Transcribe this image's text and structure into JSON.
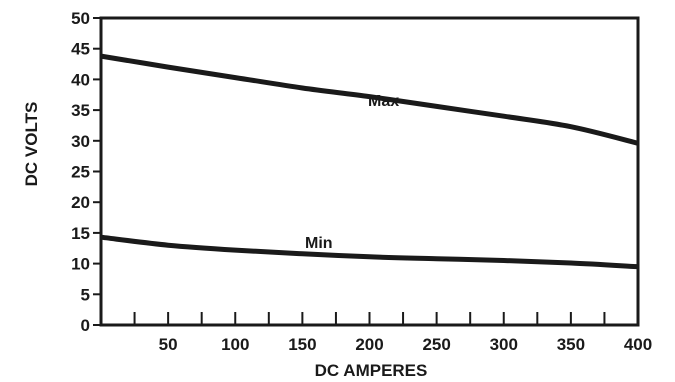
{
  "chart_data": {
    "type": "line",
    "xlabel": "DC AMPERES",
    "ylabel": "DC VOLTS",
    "xlim": [
      0,
      400
    ],
    "ylim": [
      0,
      50
    ],
    "x_ticks": [
      50,
      100,
      150,
      200,
      250,
      300,
      350,
      400
    ],
    "x_minor_ticks": [
      25,
      75,
      125,
      175,
      225,
      275,
      325,
      375
    ],
    "y_ticks": [
      0,
      5,
      10,
      15,
      20,
      25,
      30,
      35,
      40,
      45,
      50
    ],
    "grid": false,
    "series": [
      {
        "name": "Max",
        "x": [
          0,
          50,
          100,
          150,
          200,
          250,
          300,
          350,
          400
        ],
        "values": [
          43.8,
          42.0,
          40.3,
          38.6,
          37.2,
          35.6,
          34.0,
          32.3,
          29.6
        ]
      },
      {
        "name": "Min",
        "x": [
          0,
          50,
          100,
          150,
          200,
          250,
          300,
          350,
          400
        ],
        "values": [
          14.3,
          13.0,
          12.2,
          11.6,
          11.1,
          10.8,
          10.5,
          10.1,
          9.5
        ]
      }
    ],
    "colors": {
      "line": "#1a1a1a",
      "frame": "#1a1a1a"
    }
  }
}
